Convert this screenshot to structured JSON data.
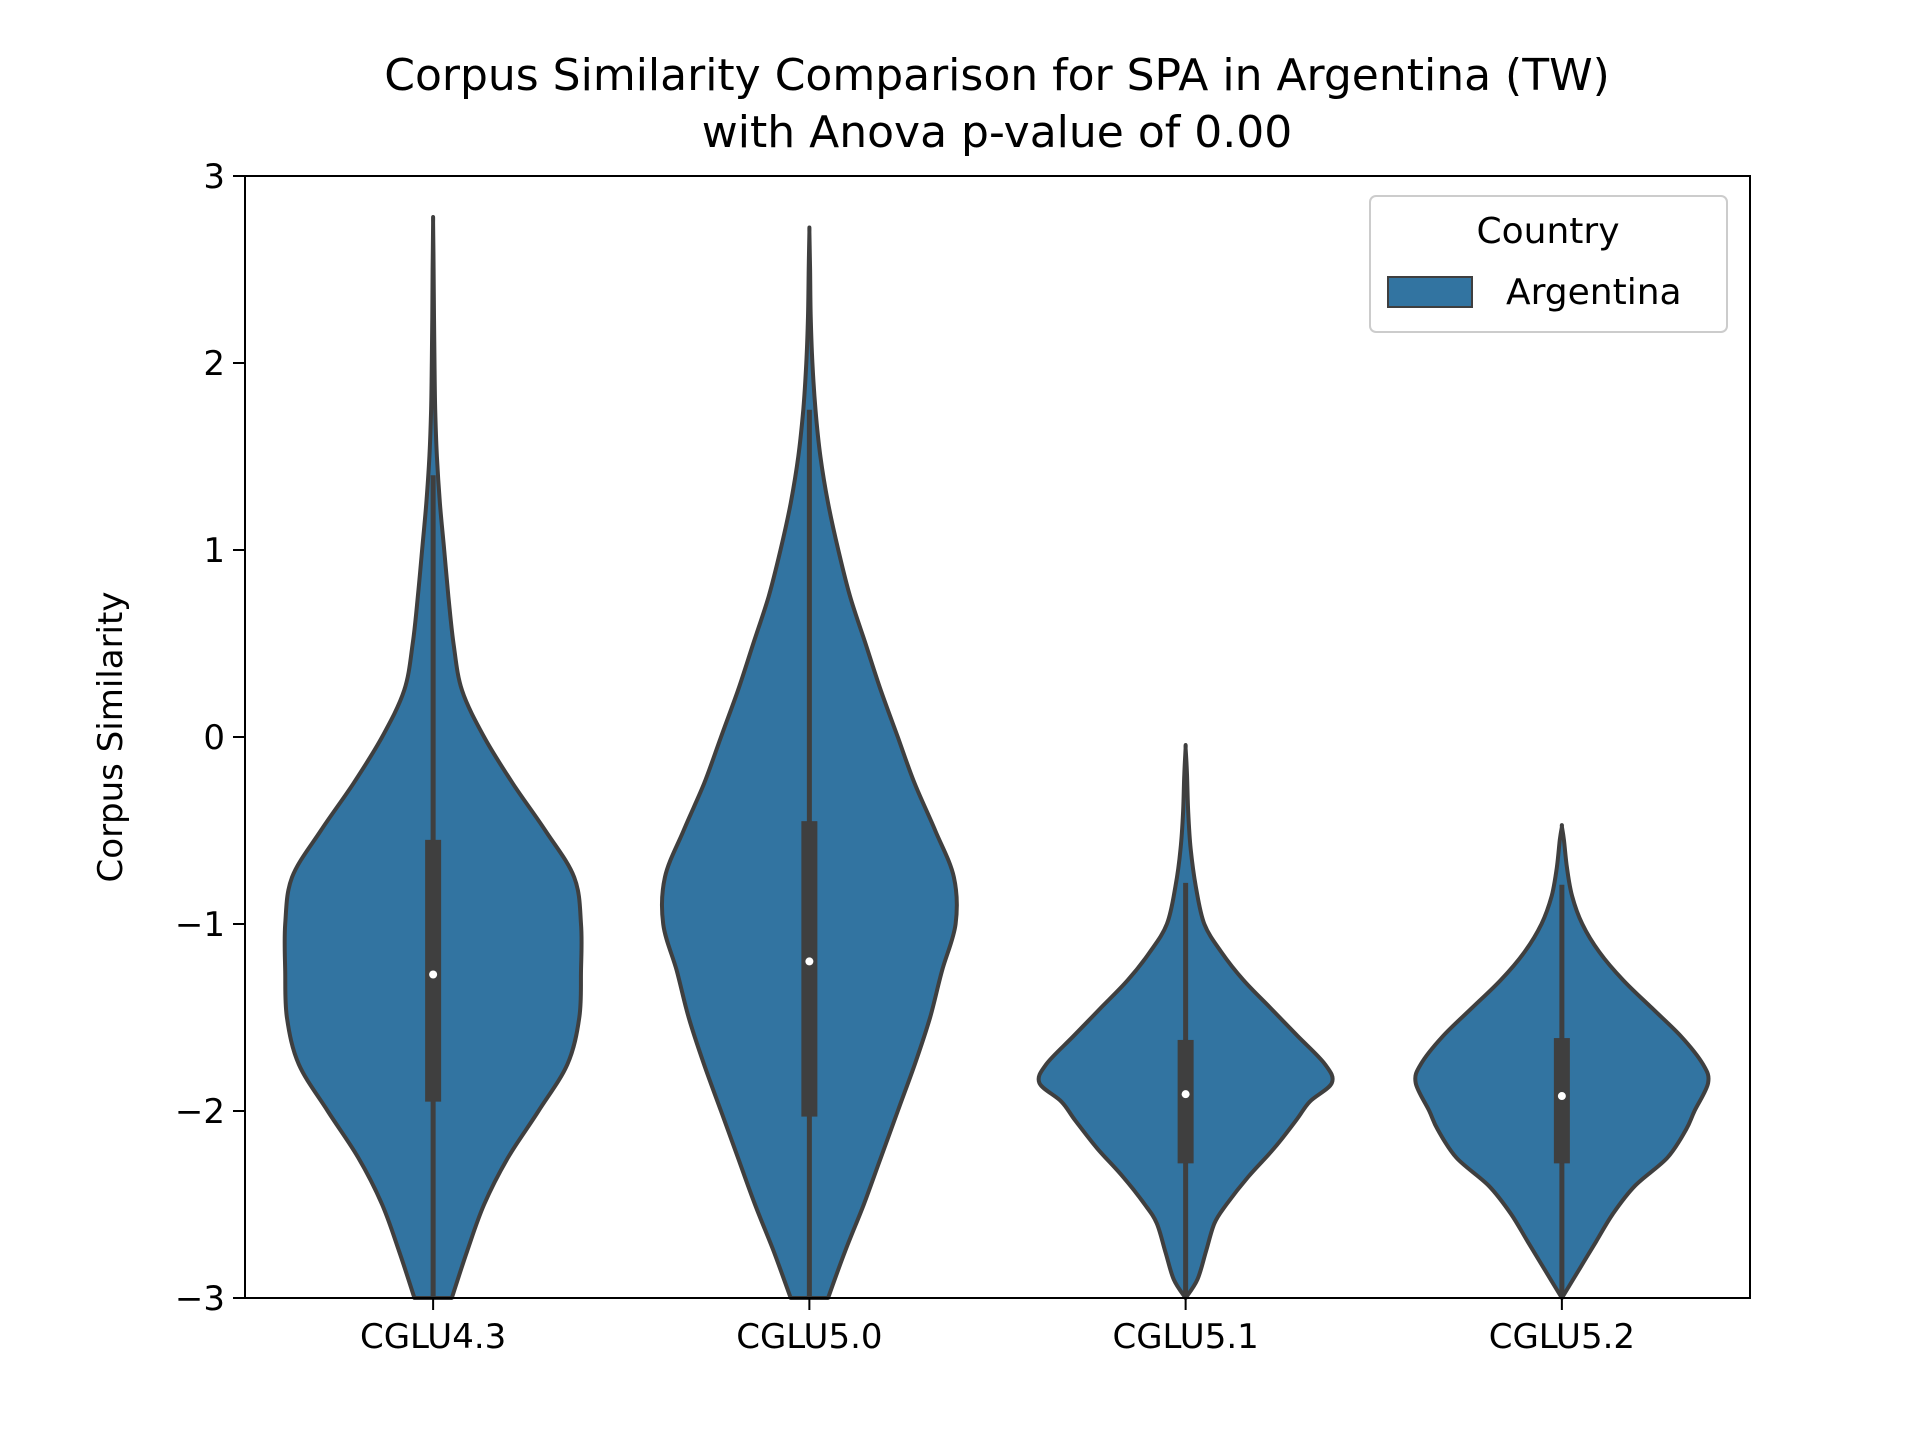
{
  "chart_data": {
    "type": "violin",
    "title": [
      "Corpus Similarity Comparison for SPA in Argentina (TW)",
      "with Anova p-value of 0.00"
    ],
    "xlabel": "",
    "ylabel": "Corpus Similarity",
    "ylim": [
      -3,
      3
    ],
    "yticks": [
      3,
      2,
      1,
      0,
      -1,
      -2,
      -3
    ],
    "ytick_labels": [
      "3",
      "2",
      "1",
      "0",
      "−1",
      "−2",
      "−3"
    ],
    "categories": [
      "CGLU4.3",
      "CGLU5.0",
      "CGLU5.1",
      "CGLU5.2"
    ],
    "grid": false,
    "legend": {
      "title": "Country",
      "position": "top-right",
      "entries": [
        {
          "name": "Argentina",
          "color": "#3274a1"
        }
      ]
    },
    "colors": {
      "fill": "#3274a1",
      "edge": "#3f3f3f",
      "box": "#3f3f3f",
      "median": "#ffffff"
    },
    "series": [
      {
        "name": "Argentina",
        "violins": [
          {
            "category": "CGLU4.3",
            "median": -1.27,
            "q1": -1.95,
            "q3": -0.55,
            "whisker_low": -3.0,
            "whisker_high": 1.4,
            "y_min": -3.0,
            "y_max": 2.75,
            "density": [
              [
                -3.0,
                0.11
              ],
              [
                -2.75,
                0.2
              ],
              [
                -2.5,
                0.3
              ],
              [
                -2.25,
                0.44
              ],
              [
                -2.0,
                0.62
              ],
              [
                -1.75,
                0.79
              ],
              [
                -1.5,
                0.86
              ],
              [
                -1.25,
                0.87
              ],
              [
                -1.0,
                0.87
              ],
              [
                -0.75,
                0.83
              ],
              [
                -0.5,
                0.66
              ],
              [
                -0.25,
                0.47
              ],
              [
                0.0,
                0.3
              ],
              [
                0.25,
                0.17
              ],
              [
                0.5,
                0.12
              ],
              [
                0.75,
                0.09
              ],
              [
                1.0,
                0.065
              ],
              [
                1.25,
                0.04
              ],
              [
                1.5,
                0.022
              ],
              [
                1.75,
                0.012
              ],
              [
                2.0,
                0.008
              ],
              [
                2.25,
                0.005
              ],
              [
                2.5,
                0.003
              ],
              [
                2.75,
                0.0
              ]
            ]
          },
          {
            "category": "CGLU5.0",
            "median": -1.2,
            "q1": -2.03,
            "q3": -0.45,
            "whisker_low": -3.0,
            "whisker_high": 1.75,
            "y_min": -3.0,
            "y_max": 2.7,
            "density": [
              [
                -3.0,
                0.11
              ],
              [
                -2.75,
                0.21
              ],
              [
                -2.5,
                0.32
              ],
              [
                -2.25,
                0.42
              ],
              [
                -2.0,
                0.52
              ],
              [
                -1.75,
                0.62
              ],
              [
                -1.5,
                0.71
              ],
              [
                -1.25,
                0.78
              ],
              [
                -1.0,
                0.86
              ],
              [
                -0.75,
                0.85
              ],
              [
                -0.5,
                0.74
              ],
              [
                -0.25,
                0.62
              ],
              [
                0.0,
                0.52
              ],
              [
                0.25,
                0.42
              ],
              [
                0.5,
                0.33
              ],
              [
                0.75,
                0.24
              ],
              [
                1.0,
                0.17
              ],
              [
                1.25,
                0.11
              ],
              [
                1.5,
                0.065
              ],
              [
                1.75,
                0.036
              ],
              [
                2.0,
                0.018
              ],
              [
                2.25,
                0.008
              ],
              [
                2.5,
                0.004
              ],
              [
                2.7,
                0.0
              ]
            ]
          },
          {
            "category": "CGLU5.1",
            "median": -1.91,
            "q1": -2.28,
            "q3": -1.62,
            "whisker_low": -3.0,
            "whisker_high": -0.78,
            "y_min": -3.0,
            "y_max": -0.06,
            "density": [
              [
                -3.0,
                0.0
              ],
              [
                -2.9,
                0.07
              ],
              [
                -2.75,
                0.12
              ],
              [
                -2.6,
                0.17
              ],
              [
                -2.5,
                0.24
              ],
              [
                -2.35,
                0.37
              ],
              [
                -2.2,
                0.52
              ],
              [
                -2.05,
                0.65
              ],
              [
                -1.95,
                0.73
              ],
              [
                -1.85,
                0.86
              ],
              [
                -1.75,
                0.82
              ],
              [
                -1.6,
                0.66
              ],
              [
                -1.45,
                0.5
              ],
              [
                -1.3,
                0.34
              ],
              [
                -1.15,
                0.21
              ],
              [
                -1.0,
                0.11
              ],
              [
                -0.8,
                0.06
              ],
              [
                -0.6,
                0.03
              ],
              [
                -0.4,
                0.015
              ],
              [
                -0.2,
                0.008
              ],
              [
                -0.06,
                0.0
              ]
            ]
          },
          {
            "category": "CGLU5.2",
            "median": -1.92,
            "q1": -2.28,
            "q3": -1.61,
            "whisker_low": -3.0,
            "whisker_high": -0.79,
            "y_min": -3.0,
            "y_max": -0.48,
            "density": [
              [
                -3.0,
                0.0
              ],
              [
                -2.85,
                0.1
              ],
              [
                -2.7,
                0.2
              ],
              [
                -2.55,
                0.3
              ],
              [
                -2.4,
                0.43
              ],
              [
                -2.25,
                0.62
              ],
              [
                -2.1,
                0.73
              ],
              [
                -2.0,
                0.78
              ],
              [
                -1.85,
                0.86
              ],
              [
                -1.75,
                0.83
              ],
              [
                -1.6,
                0.7
              ],
              [
                -1.45,
                0.53
              ],
              [
                -1.3,
                0.36
              ],
              [
                -1.15,
                0.22
              ],
              [
                -1.0,
                0.12
              ],
              [
                -0.85,
                0.06
              ],
              [
                -0.7,
                0.03
              ],
              [
                -0.55,
                0.012
              ],
              [
                -0.48,
                0.0
              ]
            ]
          }
        ]
      }
    ]
  }
}
